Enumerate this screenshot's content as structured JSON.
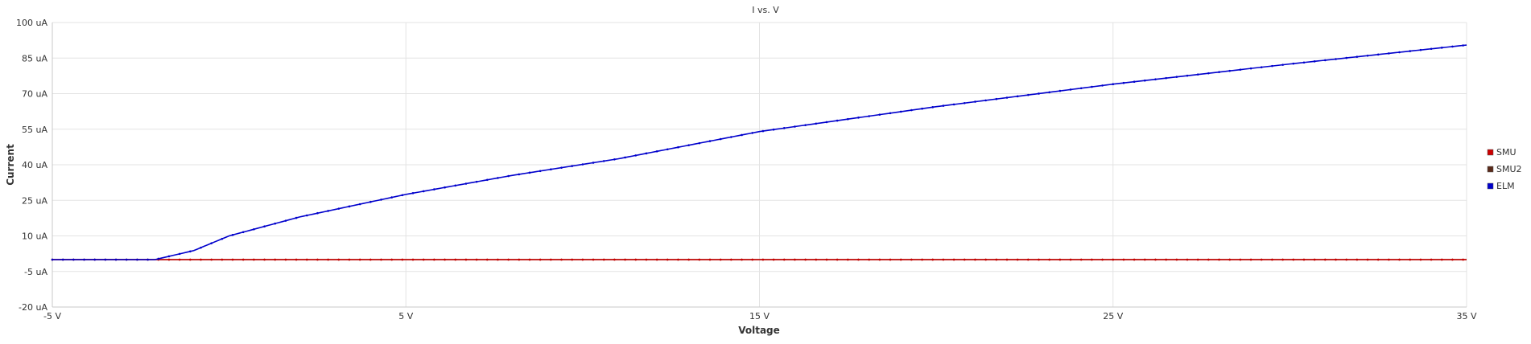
{
  "chart_data": {
    "type": "line",
    "title": "I vs. V",
    "xlabel": "Voltage",
    "ylabel": "Current",
    "xlim": [
      -5,
      35
    ],
    "ylim": [
      -20,
      100
    ],
    "x_ticks": [
      -5,
      5,
      15,
      25,
      35
    ],
    "x_tick_labels": [
      "-5 V",
      "5 V",
      "15 V",
      "25 V",
      "35 V"
    ],
    "y_ticks": [
      -20,
      -5,
      10,
      25,
      40,
      55,
      70,
      85,
      100
    ],
    "y_tick_labels": [
      "-20 uA",
      "-5 uA",
      "10 uA",
      "25 uA",
      "40 uA",
      "55 uA",
      "70 uA",
      "85 uA",
      "100 uA"
    ],
    "grid": true,
    "legend_position": "right",
    "series": [
      {
        "name": "SMU",
        "color": "#cc0000",
        "x": [
          -5,
          35
        ],
        "y": [
          0,
          0
        ]
      },
      {
        "name": "SMU2",
        "color": "#5a2a1a",
        "x": [
          -5,
          35
        ],
        "y": [
          0,
          0
        ]
      },
      {
        "name": "ELM",
        "color": "#0000cc",
        "x": [
          -5,
          -2.1,
          -1,
          0,
          2,
          5,
          8,
          11,
          15,
          20,
          25,
          30,
          35
        ],
        "y": [
          0,
          0,
          3.8,
          10,
          18,
          27.5,
          35.5,
          42.5,
          54,
          64.5,
          74,
          82.5,
          90.5
        ]
      }
    ]
  }
}
